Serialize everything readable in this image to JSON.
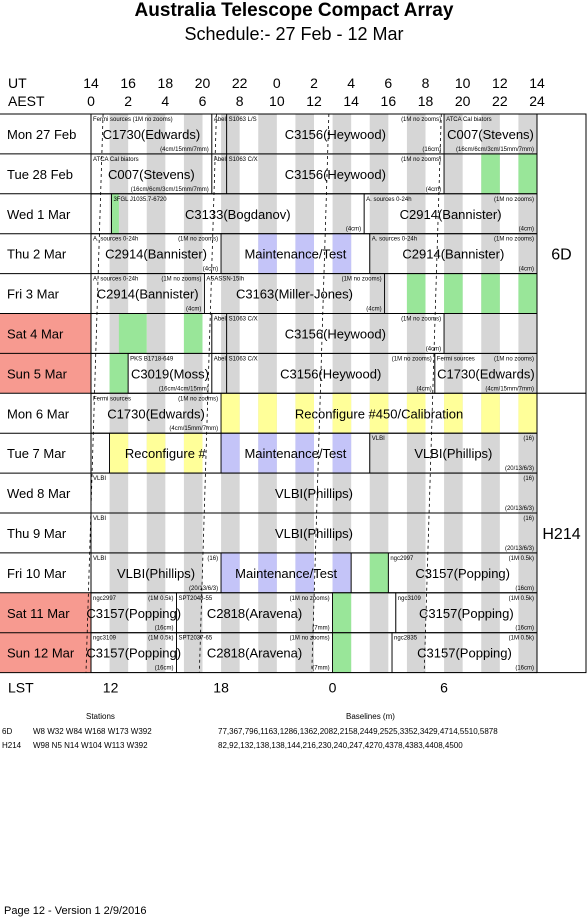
{
  "title": "Australia Telescope Compact Array",
  "subtitle": "Schedule:- 27 Feb - 12 Mar",
  "axis": {
    "ut_label": "UT",
    "aest_label": "AEST",
    "lst_label": "LST",
    "ut_ticks": [
      "14",
      "16",
      "18",
      "20",
      "22",
      "0",
      "2",
      "4",
      "6",
      "8",
      "10",
      "12",
      "14"
    ],
    "aest_ticks": [
      "0",
      "2",
      "4",
      "6",
      "8",
      "10",
      "12",
      "14",
      "16",
      "18",
      "20",
      "22",
      "24"
    ],
    "lst_ticks": [
      "12",
      "18",
      "0",
      "6"
    ]
  },
  "colors": {
    "grey": "#d6d6d6",
    "green": "#99e699",
    "blue": "#c4c4f8",
    "yellow": "#ffff99",
    "weekend": "#f79a90"
  },
  "days": [
    {
      "label": "Mon   27 Feb",
      "weekend": false,
      "blocks": [
        {
          "from": 0,
          "to": 6.5,
          "name": "C1730(Edwards)",
          "tl": "Fermi sources (1M no zooms)",
          "br": "(4cm/15mm/7mm)"
        },
        {
          "from": 6.5,
          "to": 7.3,
          "name": "",
          "tl": "Abell"
        },
        {
          "from": 7.3,
          "to": 19,
          "name": "C3156(Heywood)",
          "tl": "S1063 L/S",
          "tr": "(1M no zooms)",
          "br": "(16cm)"
        },
        {
          "from": 19,
          "to": 24,
          "name": "C007(Stevens)",
          "tl": "ATCA Cal biators",
          "br": "(16cm/6cm/3cm/15mm/7mm)"
        }
      ],
      "stripes": []
    },
    {
      "label": "Tue   28 Feb",
      "weekend": false,
      "blocks": [
        {
          "from": 0,
          "to": 6.5,
          "name": "C007(Stevens)",
          "tl": "ATCA Cal biators",
          "br": "(16cm/6cm/3cm/15mm/7mm)"
        },
        {
          "from": 6.5,
          "to": 7.3,
          "name": "",
          "tl": "Abell"
        },
        {
          "from": 7.3,
          "to": 19,
          "name": "C3156(Heywood)",
          "tl": "S1063 C/X",
          "tr": "(1M no zooms)",
          "br": "(4cm)"
        },
        {
          "from": 19,
          "to": 24,
          "name": "",
          "tl": ""
        }
      ],
      "stripes": [
        {
          "from": 21,
          "to": 22,
          "c": "green"
        },
        {
          "from": 23,
          "to": 24,
          "c": "green"
        }
      ]
    },
    {
      "label": "Wed   1 Mar",
      "weekend": false,
      "blocks": [
        {
          "from": 0,
          "to": 1.1,
          "name": ""
        },
        {
          "from": 1.1,
          "to": 14.7,
          "name": "C3133(Bogdanov)",
          "tl": "3FGL J1035.7-6720",
          "br": "(4cm)"
        },
        {
          "from": 14.7,
          "to": 24,
          "name": "C2914(Bannister)",
          "tl": "A. sources 0-24h",
          "tr": "(1M no zooms)",
          "br": "(4cm)"
        }
      ],
      "stripes": [
        {
          "from": 1.1,
          "to": 1.5,
          "c": "green"
        }
      ]
    },
    {
      "label": "Thu   2 Mar",
      "weekend": false,
      "blocks": [
        {
          "from": 0,
          "to": 7.0,
          "name": "C2914(Bannister)",
          "tl": "A. sources 0-24h",
          "tr": "(1M no zooms)",
          "br": "(4cm)"
        },
        {
          "from": 7.0,
          "to": 15,
          "name": "Maintenance/Test"
        },
        {
          "from": 15,
          "to": 24,
          "name": "C2914(Bannister)",
          "tl": "A. sources 0-24h",
          "tr": "(1M no zooms)",
          "br": "(4cm)"
        }
      ],
      "stripes": [
        {
          "from": 9,
          "to": 10,
          "c": "blue"
        },
        {
          "from": 11,
          "to": 12,
          "c": "blue"
        },
        {
          "from": 13,
          "to": 14,
          "c": "blue"
        }
      ]
    },
    {
      "label": "Fri   3 Mar",
      "weekend": false,
      "blocks": [
        {
          "from": 0,
          "to": 6.1,
          "name": "C2914(Bannister)",
          "tl": "A. sources 0-24h",
          "tr": "(1M no zooms)",
          "br": "(4cm)"
        },
        {
          "from": 6.1,
          "to": 15.8,
          "name": "C3163(Miller-Jones)",
          "tl": "ASASSN-15lh",
          "tr": "(1M no zooms)",
          "br": "(4cm)"
        },
        {
          "from": 15.8,
          "to": 24,
          "name": ""
        }
      ],
      "stripes": [
        {
          "from": 17,
          "to": 18,
          "c": "green"
        },
        {
          "from": 19,
          "to": 20,
          "c": "green"
        },
        {
          "from": 21,
          "to": 22,
          "c": "green"
        },
        {
          "from": 23,
          "to": 24,
          "c": "green"
        }
      ]
    },
    {
      "label": "Sat   4 Mar",
      "weekend": true,
      "blocks": [
        {
          "from": 0,
          "to": 6.5,
          "name": ""
        },
        {
          "from": 6.5,
          "to": 7.3,
          "name": "",
          "tl": "Abell"
        },
        {
          "from": 7.3,
          "to": 19,
          "name": "C3156(Heywood)",
          "tl": "S1063 C/X",
          "tr": "(1M no zooms)",
          "br": "(4cm)"
        },
        {
          "from": 19,
          "to": 24,
          "name": ""
        }
      ],
      "stripes": [
        {
          "from": 1.5,
          "to": 3,
          "c": "green"
        },
        {
          "from": 5,
          "to": 6,
          "c": "green"
        }
      ]
    },
    {
      "label": "Sun   5 Mar",
      "weekend": true,
      "blocks": [
        {
          "from": 0,
          "to": 2,
          "name": ""
        },
        {
          "from": 2,
          "to": 6.5,
          "name": "C3019(Moss)",
          "tl": "PKS B1718-649",
          "br": "(16cm/4cm/15mm)"
        },
        {
          "from": 6.5,
          "to": 7.3,
          "name": "",
          "tl": "Abell"
        },
        {
          "from": 7.3,
          "to": 18.5,
          "name": "C3156(Heywood)",
          "tl": "S1063 C/X",
          "tr": "(1M no zooms)",
          "br": "(4cm)"
        },
        {
          "from": 18.5,
          "to": 24,
          "name": "C1730(Edwards)",
          "tl": "Fermi sources",
          "tr": "(1M no zooms)",
          "br": "(4cm/15mm/7mm)"
        }
      ],
      "stripes": [
        {
          "from": 1,
          "to": 2,
          "c": "green"
        }
      ]
    },
    {
      "label": "Mon   6 Mar",
      "weekend": false,
      "blocks": [
        {
          "from": 0,
          "to": 7.0,
          "name": "C1730(Edwards)",
          "tl": "Fermi sources",
          "tr": "(1M no zooms)",
          "br": "(4cm/15mm/7mm)"
        },
        {
          "from": 7.0,
          "to": 24,
          "name": "Reconfigure #450/Calibration"
        }
      ],
      "stripes": [
        {
          "from": 7,
          "to": 8,
          "c": "yellow"
        },
        {
          "from": 9,
          "to": 10,
          "c": "yellow"
        },
        {
          "from": 11,
          "to": 12,
          "c": "yellow"
        },
        {
          "from": 13,
          "to": 14,
          "c": "yellow"
        },
        {
          "from": 15,
          "to": 16,
          "c": "yellow"
        },
        {
          "from": 17,
          "to": 18,
          "c": "yellow"
        },
        {
          "from": 19,
          "to": 20,
          "c": "yellow"
        },
        {
          "from": 21,
          "to": 22,
          "c": "yellow"
        },
        {
          "from": 23,
          "to": 24,
          "c": "yellow"
        }
      ]
    },
    {
      "label": "Tue   7 Mar",
      "weekend": false,
      "blocks": [
        {
          "from": 0,
          "to": 1,
          "name": ""
        },
        {
          "from": 1,
          "to": 7,
          "name": "Reconfigure #"
        },
        {
          "from": 7,
          "to": 15,
          "name": "Maintenance/Test"
        },
        {
          "from": 15,
          "to": 24,
          "name": "VLBI(Phillips)",
          "tl": "VLBI",
          "tr": "(16)",
          "br": "(20/13/6/3)"
        }
      ],
      "stripes": [
        {
          "from": 1,
          "to": 2,
          "c": "yellow"
        },
        {
          "from": 3,
          "to": 4,
          "c": "yellow"
        },
        {
          "from": 5,
          "to": 6,
          "c": "yellow"
        },
        {
          "from": 7,
          "to": 8,
          "c": "blue"
        },
        {
          "from": 9,
          "to": 10,
          "c": "blue"
        },
        {
          "from": 11,
          "to": 12,
          "c": "blue"
        },
        {
          "from": 13,
          "to": 14,
          "c": "blue"
        }
      ]
    },
    {
      "label": "Wed   8 Mar",
      "weekend": false,
      "blocks": [
        {
          "from": 0,
          "to": 24,
          "name": "VLBI(Phillips)",
          "tl": "VLBI",
          "tr": "(16)",
          "br": "(20/13/6/3)"
        }
      ],
      "stripes": []
    },
    {
      "label": "Thu   9 Mar",
      "weekend": false,
      "blocks": [
        {
          "from": 0,
          "to": 24,
          "name": "VLBI(Phillips)",
          "tl": "VLBI",
          "tr": "(16)",
          "br": "(20/13/6/3)"
        }
      ],
      "stripes": []
    },
    {
      "label": "Fri   10 Mar",
      "weekend": false,
      "blocks": [
        {
          "from": 0,
          "to": 7,
          "name": "VLBI(Phillips)",
          "tl": "VLBI",
          "tr": "(16)",
          "br": "(20/13/6/3)"
        },
        {
          "from": 7,
          "to": 14,
          "name": "Maintenance/Test"
        },
        {
          "from": 14,
          "to": 16,
          "name": ""
        },
        {
          "from": 16,
          "to": 24,
          "name": "C3157(Popping)",
          "tl": "ngc2997",
          "tr": "(1M 0.5k)",
          "br": "(16cm)"
        }
      ],
      "stripes": [
        {
          "from": 7,
          "to": 8,
          "c": "blue"
        },
        {
          "from": 9,
          "to": 10,
          "c": "blue"
        },
        {
          "from": 11,
          "to": 12,
          "c": "blue"
        },
        {
          "from": 13,
          "to": 14,
          "c": "blue"
        },
        {
          "from": 15,
          "to": 16,
          "c": "green"
        }
      ]
    },
    {
      "label": "Sat   11 Mar",
      "weekend": true,
      "blocks": [
        {
          "from": 0,
          "to": 4.6,
          "name": "C3157(Popping)",
          "tl": "ngc2997",
          "tr": "(1M 0.5k)",
          "br": "(16cm)"
        },
        {
          "from": 4.6,
          "to": 13,
          "name": "C2818(Aravena)",
          "tl": "SPT2048-55",
          "tr": "(1M no zooms)",
          "br": "(7mm)"
        },
        {
          "from": 13,
          "to": 16.4,
          "name": ""
        },
        {
          "from": 16.4,
          "to": 24,
          "name": "C3157(Popping)",
          "tl": "ngc3109",
          "tr": "(1M 0.5k)",
          "br": "(16cm)"
        }
      ],
      "stripes": [
        {
          "from": 13,
          "to": 14,
          "c": "green"
        }
      ]
    },
    {
      "label": "Sun   12 Mar",
      "weekend": true,
      "blocks": [
        {
          "from": 0,
          "to": 4.6,
          "name": "C3157(Popping)",
          "tl": "ngc3109",
          "tr": "(1M 0.5k)",
          "br": "(16cm)"
        },
        {
          "from": 4.6,
          "to": 13,
          "name": "C2818(Aravena)",
          "tl": "SPT2037-65",
          "tr": "(1M no zooms)",
          "br": "(7mm)"
        },
        {
          "from": 13,
          "to": 16.2,
          "name": ""
        },
        {
          "from": 16.2,
          "to": 24,
          "name": "C3157(Popping)",
          "tl": "ngc2835",
          "tr": "(1M 0.5k)",
          "br": "(16cm)"
        }
      ],
      "stripes": [
        {
          "from": 13,
          "to": 14,
          "c": "green"
        }
      ]
    }
  ],
  "configs": [
    {
      "name": "6D",
      "from": 0,
      "to": 7
    },
    {
      "name": "H214",
      "from": 7,
      "to": 14
    }
  ],
  "stations": {
    "header": "Stations",
    "rows": [
      {
        "config": "6D",
        "value": "W8 W32 W84 W168 W173 W392"
      },
      {
        "config": "H214",
        "value": "W98 N5 N14 W104 W113 W392"
      }
    ]
  },
  "baselines": {
    "header": "Baselines (m)",
    "rows": [
      "77,367,796,1163,1286,1362,2082,2158,2449,2525,3352,3429,4714,5510,5878",
      "82,92,132,138,138,144,216,230,240,247,4270,4378,4383,4408,4500"
    ]
  },
  "footer": "Page 12 - Version 1  2/9/2016"
}
